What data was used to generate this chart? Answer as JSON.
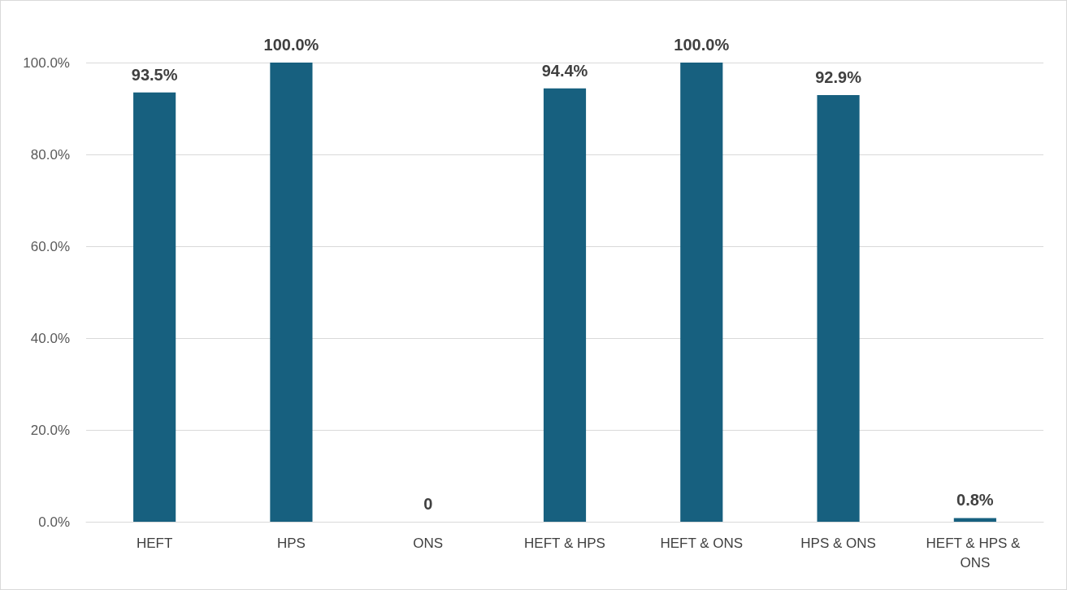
{
  "chart_data": {
    "type": "bar",
    "categories": [
      "HEFT",
      "HPS",
      "ONS",
      "HEFT & HPS",
      "HEFT & ONS",
      "HPS & ONS",
      "HEFT & HPS & ONS"
    ],
    "values": [
      93.5,
      100.0,
      0,
      94.4,
      100.0,
      92.9,
      0.8
    ],
    "value_labels": [
      "93.5%",
      "100.0%",
      "0",
      "94.4%",
      "100.0%",
      "92.9%",
      "0.8%"
    ],
    "color": "#17607f",
    "ylim": [
      0,
      100
    ],
    "yticks": [
      {
        "value": 0,
        "label": "0.0%"
      },
      {
        "value": 20,
        "label": "20.0%"
      },
      {
        "value": 40,
        "label": "40.0%"
      },
      {
        "value": 60,
        "label": "60.0%"
      },
      {
        "value": 80,
        "label": "80.0%"
      },
      {
        "value": 100,
        "label": "100.0%"
      }
    ],
    "grid": "y"
  }
}
